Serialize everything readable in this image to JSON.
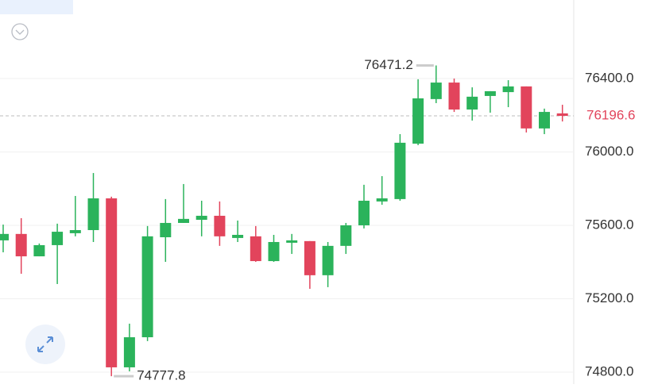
{
  "chart_data": {
    "type": "candlestick",
    "open": [
      75518,
      75553,
      75431,
      75492,
      75557,
      75574,
      75747,
      74826,
      74990,
      75535,
      75613,
      75630,
      75652,
      75531,
      75540,
      75405,
      75505,
      75514,
      75328,
      75488,
      75600,
      75730,
      75743,
      76045,
      76288,
      76378,
      76231,
      76305,
      76326,
      76357,
      76128,
      76210
    ],
    "high": [
      75604,
      75639,
      75501,
      75609,
      75760,
      75885,
      75756,
      75064,
      75596,
      75743,
      75825,
      75734,
      75730,
      75626,
      75596,
      75548,
      75553,
      75514,
      75509,
      75613,
      75821,
      75868,
      76097,
      76396,
      76471.2,
      76400,
      76352,
      76331,
      76391,
      76357,
      76236,
      76257
    ],
    "low": [
      75453,
      75336,
      75431,
      75280,
      75540,
      75509,
      74777.8,
      74804,
      74969,
      75401,
      75613,
      75540,
      75488,
      75509,
      75401,
      75401,
      75444,
      75254,
      75263,
      75444,
      75583,
      75712,
      75734,
      76037,
      76266,
      76218,
      76171,
      76214,
      76244,
      76106,
      76097,
      76166
    ],
    "close": [
      75553,
      75431,
      75492,
      75565,
      75574,
      75747,
      74826,
      74990,
      75540,
      75613,
      75635,
      75652,
      75540,
      75548,
      75405,
      75509,
      75518,
      75328,
      75488,
      75600,
      75734,
      75747,
      76050,
      76292,
      76378,
      76231,
      76301,
      76331,
      76357,
      76128,
      76218,
      76196.6
    ],
    "up_color": "#2bb35b",
    "down_color": "#e2445c",
    "ylim": [
      74735,
      76828
    ],
    "yticks": [
      {
        "value": 74800,
        "label": "74800.0"
      },
      {
        "value": 75200,
        "label": "75200.0"
      },
      {
        "value": 75600,
        "label": "75600.0"
      },
      {
        "value": 76000,
        "label": "76000.0"
      },
      {
        "value": 76400,
        "label": "76400.0"
      }
    ],
    "grid": true
  }
}
